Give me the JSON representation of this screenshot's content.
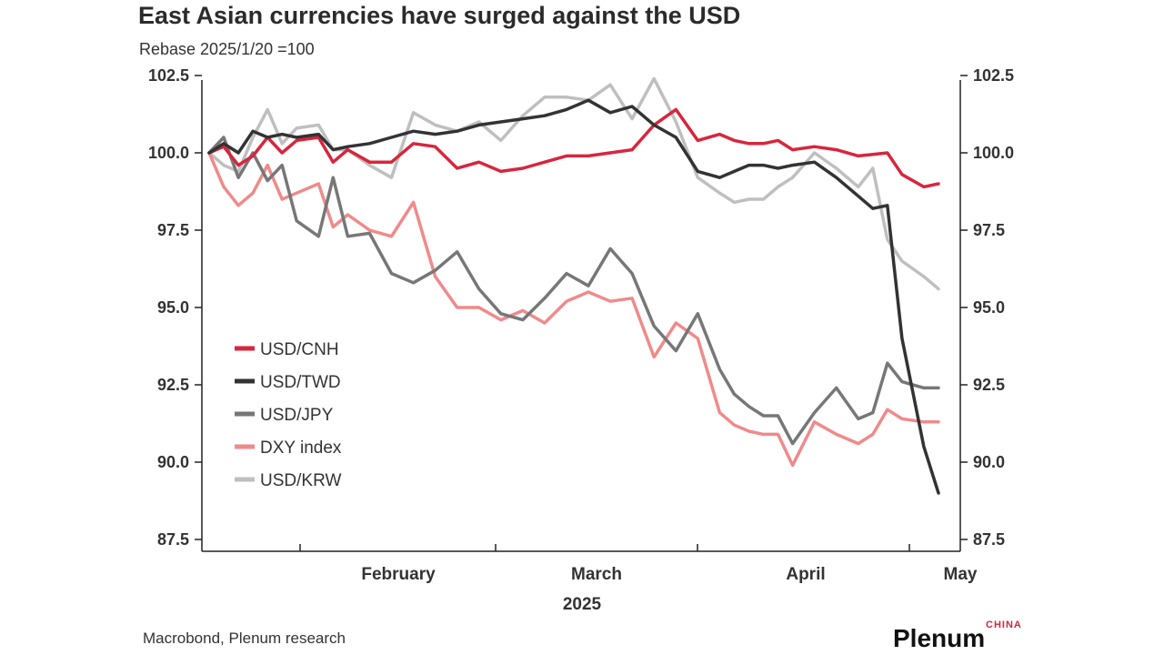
{
  "chart_data": {
    "type": "line",
    "title": "East Asian currencies have surged against the USD",
    "subtitle": "Rebase 2025/1/20 =100",
    "xlabel": "2025",
    "ylabel": "",
    "ylim": [
      87.5,
      102.5
    ],
    "y_ticks": [
      "102.5",
      "100.0",
      "97.5",
      "95.0",
      "92.5",
      "90.0",
      "87.5"
    ],
    "x_ticks": [
      "February",
      "March",
      "April",
      "May"
    ],
    "x_tick_dates": [
      "2025-02-01",
      "2025-03-01",
      "2025-04-01",
      "2025-05-01"
    ],
    "x_range": [
      "2025-01-20",
      "2025-05-01"
    ],
    "legend_position": "left-middle",
    "grid": false,
    "dual_axis_mirror": true,
    "source": "Macrobond, Plenum research",
    "brand": "Plenum",
    "brand_sub": "CHINA",
    "series": [
      {
        "name": "USD/CNH",
        "color": "#d7263d",
        "x": [
          "2025-01-20",
          "2025-01-22",
          "2025-01-24",
          "2025-01-26",
          "2025-01-28",
          "2025-01-30",
          "2025-02-01",
          "2025-02-04",
          "2025-02-06",
          "2025-02-08",
          "2025-02-11",
          "2025-02-14",
          "2025-02-17",
          "2025-02-20",
          "2025-02-23",
          "2025-02-26",
          "2025-03-01",
          "2025-03-04",
          "2025-03-07",
          "2025-03-10",
          "2025-03-13",
          "2025-03-16",
          "2025-03-19",
          "2025-03-22",
          "2025-03-25",
          "2025-03-28",
          "2025-03-31",
          "2025-04-02",
          "2025-04-04",
          "2025-04-06",
          "2025-04-08",
          "2025-04-10",
          "2025-04-13",
          "2025-04-16",
          "2025-04-19",
          "2025-04-21",
          "2025-04-23",
          "2025-04-25",
          "2025-04-28",
          "2025-04-30"
        ],
        "values": [
          100.0,
          100.2,
          99.6,
          99.9,
          100.5,
          100.0,
          100.4,
          100.5,
          99.7,
          100.1,
          99.7,
          99.7,
          100.3,
          100.2,
          99.5,
          99.7,
          99.4,
          99.5,
          99.7,
          99.9,
          99.9,
          100.0,
          100.1,
          100.9,
          101.4,
          100.4,
          100.6,
          100.4,
          100.3,
          100.3,
          100.4,
          100.1,
          100.2,
          100.1,
          99.9,
          99.95,
          100.0,
          99.3,
          98.9,
          99.0
        ]
      },
      {
        "name": "USD/TWD",
        "color": "#333333",
        "x": [
          "2025-01-20",
          "2025-01-22",
          "2025-01-24",
          "2025-01-26",
          "2025-01-28",
          "2025-01-30",
          "2025-02-01",
          "2025-02-04",
          "2025-02-06",
          "2025-02-08",
          "2025-02-11",
          "2025-02-14",
          "2025-02-17",
          "2025-02-20",
          "2025-02-23",
          "2025-02-26",
          "2025-03-01",
          "2025-03-04",
          "2025-03-07",
          "2025-03-10",
          "2025-03-13",
          "2025-03-16",
          "2025-03-19",
          "2025-03-22",
          "2025-03-25",
          "2025-03-28",
          "2025-03-31",
          "2025-04-02",
          "2025-04-04",
          "2025-04-06",
          "2025-04-08",
          "2025-04-10",
          "2025-04-13",
          "2025-04-16",
          "2025-04-19",
          "2025-04-21",
          "2025-04-23",
          "2025-04-25",
          "2025-04-28",
          "2025-04-30"
        ],
        "values": [
          100.0,
          100.3,
          100.0,
          100.7,
          100.5,
          100.6,
          100.5,
          100.6,
          100.1,
          100.2,
          100.3,
          100.5,
          100.7,
          100.6,
          100.7,
          100.9,
          101.0,
          101.1,
          101.2,
          101.4,
          101.7,
          101.3,
          101.5,
          100.9,
          100.5,
          99.4,
          99.2,
          99.4,
          99.6,
          99.6,
          99.5,
          99.6,
          99.7,
          99.2,
          98.6,
          98.2,
          98.3,
          94.0,
          90.5,
          89.0
        ]
      },
      {
        "name": "USD/JPY",
        "color": "#777777",
        "x": [
          "2025-01-20",
          "2025-01-22",
          "2025-01-24",
          "2025-01-26",
          "2025-01-28",
          "2025-01-30",
          "2025-02-01",
          "2025-02-04",
          "2025-02-06",
          "2025-02-08",
          "2025-02-11",
          "2025-02-14",
          "2025-02-17",
          "2025-02-20",
          "2025-02-23",
          "2025-02-26",
          "2025-03-01",
          "2025-03-04",
          "2025-03-07",
          "2025-03-10",
          "2025-03-13",
          "2025-03-16",
          "2025-03-19",
          "2025-03-22",
          "2025-03-25",
          "2025-03-28",
          "2025-03-31",
          "2025-04-02",
          "2025-04-04",
          "2025-04-06",
          "2025-04-08",
          "2025-04-10",
          "2025-04-13",
          "2025-04-16",
          "2025-04-19",
          "2025-04-21",
          "2025-04-23",
          "2025-04-25",
          "2025-04-28",
          "2025-04-30"
        ],
        "values": [
          100.0,
          100.5,
          99.2,
          100.0,
          99.1,
          99.6,
          97.8,
          97.3,
          99.2,
          97.3,
          97.4,
          96.1,
          95.8,
          96.2,
          96.8,
          95.6,
          94.8,
          94.6,
          95.3,
          96.1,
          95.7,
          96.9,
          96.1,
          94.4,
          93.6,
          94.8,
          93.0,
          92.2,
          91.8,
          91.5,
          91.5,
          90.6,
          91.6,
          92.4,
          91.4,
          91.6,
          93.2,
          92.6,
          92.4,
          92.4
        ]
      },
      {
        "name": "DXY index",
        "color": "#f08a8a",
        "x": [
          "2025-01-20",
          "2025-01-22",
          "2025-01-24",
          "2025-01-26",
          "2025-01-28",
          "2025-01-30",
          "2025-02-01",
          "2025-02-04",
          "2025-02-06",
          "2025-02-08",
          "2025-02-11",
          "2025-02-14",
          "2025-02-17",
          "2025-02-20",
          "2025-02-23",
          "2025-02-26",
          "2025-03-01",
          "2025-03-04",
          "2025-03-07",
          "2025-03-10",
          "2025-03-13",
          "2025-03-16",
          "2025-03-19",
          "2025-03-22",
          "2025-03-25",
          "2025-03-28",
          "2025-03-31",
          "2025-04-02",
          "2025-04-04",
          "2025-04-06",
          "2025-04-08",
          "2025-04-10",
          "2025-04-13",
          "2025-04-16",
          "2025-04-19",
          "2025-04-21",
          "2025-04-23",
          "2025-04-25",
          "2025-04-28",
          "2025-04-30"
        ],
        "values": [
          100.0,
          98.9,
          98.3,
          98.7,
          99.6,
          98.5,
          98.7,
          99.0,
          97.6,
          98.0,
          97.5,
          97.3,
          98.4,
          96.0,
          95.0,
          95.0,
          94.6,
          94.9,
          94.5,
          95.2,
          95.5,
          95.2,
          95.3,
          93.4,
          94.5,
          94.0,
          91.6,
          91.2,
          91.0,
          90.9,
          90.9,
          89.9,
          91.3,
          90.9,
          90.6,
          90.9,
          91.7,
          91.4,
          91.3,
          91.3
        ]
      },
      {
        "name": "USD/KRW",
        "color": "#bfbfbf",
        "x": [
          "2025-01-20",
          "2025-01-22",
          "2025-01-24",
          "2025-01-26",
          "2025-01-28",
          "2025-01-30",
          "2025-02-01",
          "2025-02-04",
          "2025-02-06",
          "2025-02-08",
          "2025-02-11",
          "2025-02-14",
          "2025-02-17",
          "2025-02-20",
          "2025-02-23",
          "2025-02-26",
          "2025-03-01",
          "2025-03-04",
          "2025-03-07",
          "2025-03-10",
          "2025-03-13",
          "2025-03-16",
          "2025-03-19",
          "2025-03-22",
          "2025-03-25",
          "2025-03-28",
          "2025-03-31",
          "2025-04-02",
          "2025-04-04",
          "2025-04-06",
          "2025-04-08",
          "2025-04-10",
          "2025-04-13",
          "2025-04-16",
          "2025-04-19",
          "2025-04-21",
          "2025-04-23",
          "2025-04-25",
          "2025-04-28",
          "2025-04-30"
        ],
        "values": [
          100.0,
          99.6,
          99.4,
          100.5,
          101.4,
          100.3,
          100.8,
          100.9,
          100.1,
          100.1,
          99.6,
          99.2,
          101.3,
          100.9,
          100.7,
          101.0,
          100.4,
          101.2,
          101.8,
          101.8,
          101.7,
          102.2,
          101.1,
          102.4,
          101.0,
          99.2,
          98.7,
          98.4,
          98.5,
          98.5,
          98.9,
          99.2,
          100.0,
          99.5,
          98.9,
          99.5,
          97.2,
          96.5,
          96.0,
          95.6
        ]
      }
    ]
  }
}
